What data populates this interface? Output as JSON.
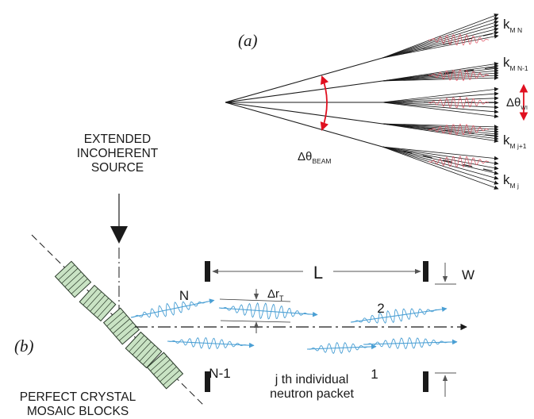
{
  "panel_a": {
    "label": "(a)",
    "beam_divergence": {
      "symbol": "Δθ",
      "subscript": "BEAM"
    },
    "wavelet_divergence": {
      "symbol": "Δθ",
      "subscript": "WI"
    },
    "k_labels": [
      {
        "base": "k",
        "sub": "M N"
      },
      {
        "base": "k",
        "sub": "M N-1"
      },
      {
        "base": "k",
        "sub": "M j+1"
      },
      {
        "base": "k",
        "sub": "M j"
      }
    ]
  },
  "panel_b": {
    "label": "(b)",
    "source_label": [
      "EXTENDED",
      "INCOHERENT",
      "SOURCE"
    ],
    "crystal_label": [
      "PERFECT CRYSTAL",
      "MOSAIC BLOCKS"
    ],
    "slit_separation": "L",
    "slit_width": "W",
    "transverse_coherence": {
      "symbol": "Δr",
      "subscript": "T"
    },
    "packet_labels": {
      "n": "N",
      "n_minus_1": "N-1",
      "two": "2",
      "one": "1"
    },
    "packet_caption": [
      "j th  individual",
      "neutron packet"
    ]
  },
  "colors": {
    "wavelet_a": "#e05060",
    "packet_b": "#4a9fd4",
    "crystal_block": "#c9e3c4",
    "arrow_red": "#e01020",
    "ink": "#1a1a1a"
  }
}
